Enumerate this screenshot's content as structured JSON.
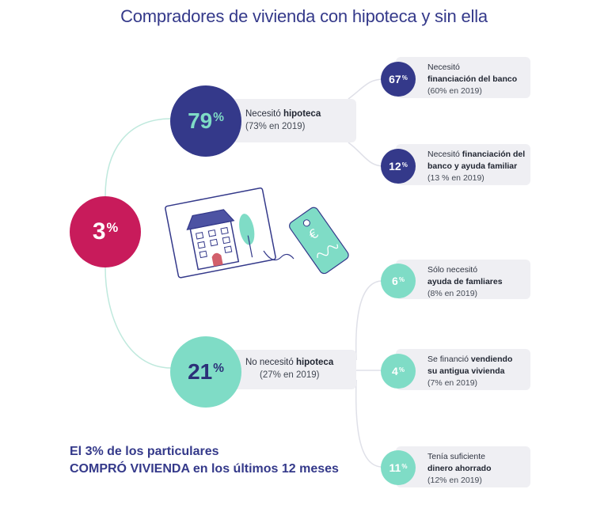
{
  "title": "Compradores de vivienda con hipoteca y sin ella",
  "colors": {
    "navy": "#34398a",
    "magenta": "#c81b5b",
    "mint": "#7fdcc6",
    "box_bg": "#efeff3"
  },
  "root": {
    "value": "3",
    "unit": "%"
  },
  "branches": {
    "mortgage": {
      "value": "79",
      "unit": "%",
      "label_prefix": "Necesitó ",
      "label_strong": "hipoteca",
      "sub": "(73% en 2019)",
      "children": [
        {
          "value": "67",
          "unit": "%",
          "line1": "Necesitó",
          "line2_strong": "financiación del banco",
          "sub": "(60% en 2019)"
        },
        {
          "value": "12",
          "unit": "%",
          "line1": "Necesitó ",
          "line1_strong": "financiación del",
          "line2_strong": "banco y ayuda familiar",
          "sub": "(13 % en 2019)"
        }
      ]
    },
    "no_mortgage": {
      "value": "21",
      "unit": "%",
      "label_prefix": "No necesitó ",
      "label_strong": "hipoteca",
      "sub": "(27% en 2019)",
      "children": [
        {
          "value": "6",
          "unit": "%",
          "line1": "Sólo necesitó",
          "line2_strong": "ayuda de famliares",
          "sub": "(8% en 2019)"
        },
        {
          "value": "4",
          "unit": "%",
          "line1": "Se financió ",
          "line1_strong": "vendiendo",
          "line2_strong": "su antigua vivienda",
          "sub": "(7% en 2019)"
        },
        {
          "value": "11",
          "unit": "%",
          "line1": "Tenía suficiente",
          "line2_strong": "dinero ahorrado",
          "sub": "(12% en 2019)"
        }
      ]
    }
  },
  "footer": {
    "line1": "El 3% de los particulares",
    "line2_strong": "COMPRÓ VIVIENDA",
    "line2_rest": " en los últimos 12 meses"
  },
  "illustration": {
    "icon": "house-card-and-euro-tag-illustration"
  }
}
